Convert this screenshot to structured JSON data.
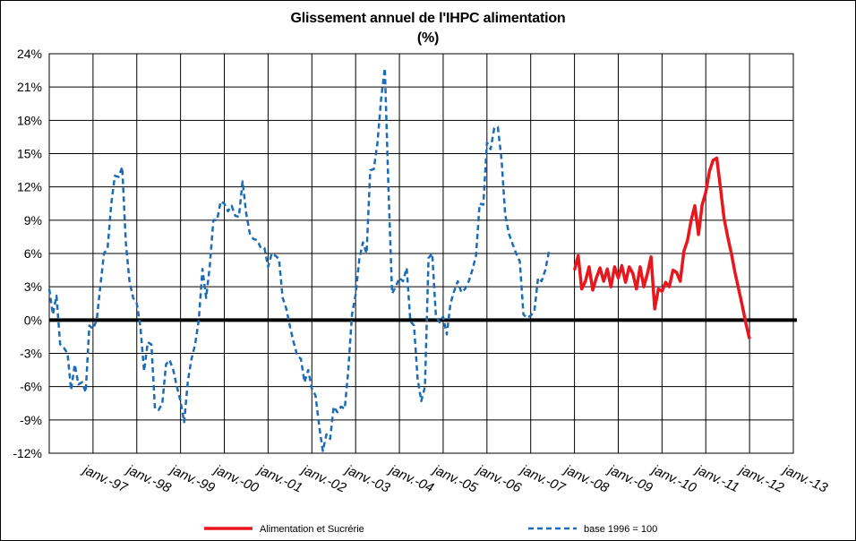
{
  "chart_data": {
    "type": "line",
    "title": "Glissement annuel de l'IHPC alimentation",
    "subtitle": "(%)",
    "xlabel": "",
    "ylabel": "",
    "ylim": [
      -12,
      24
    ],
    "y_ticks": [
      "24%",
      "21%",
      "18%",
      "15%",
      "12%",
      "9%",
      "6%",
      "3%",
      "0%",
      "-3%",
      "-6%",
      "-9%",
      "-12%"
    ],
    "x_ticks": [
      "janv.-97",
      "janv.-98",
      "janv.-99",
      "janv.-00",
      "janv.-01",
      "janv.-02",
      "janv.-03",
      "janv.-04",
      "janv.-05",
      "janv.-06",
      "janv.-07",
      "janv.-08",
      "janv.-09",
      "janv.-10",
      "janv.-11",
      "janv.-12",
      "janv.-13"
    ],
    "x_range": [
      "1996-01",
      "2013-01"
    ],
    "grid": true,
    "legend_position": "bottom",
    "series": [
      {
        "name": "Alimentation et Sucrérie",
        "color": "#e8161d",
        "style": "solid",
        "x_start": "2008-01",
        "values": [
          4.5,
          5.8,
          2.8,
          3.5,
          4.8,
          2.7,
          3.8,
          4.7,
          3.5,
          4.6,
          3.0,
          4.8,
          3.8,
          4.9,
          3.4,
          4.8,
          4.2,
          2.8,
          4.8,
          3.0,
          4.2,
          5.7,
          1.0,
          2.8,
          2.6,
          3.4,
          3.0,
          4.5,
          4.3,
          3.5,
          6.2,
          7.2,
          9.0,
          10.3,
          7.7,
          10.4,
          11.5,
          13.4,
          14.4,
          14.6,
          12.0,
          9.2,
          7.5,
          6.0,
          4.3,
          2.8,
          1.3,
          -0.3,
          -1.7
        ]
      },
      {
        "name": "base 1996 = 100",
        "color": "#1c6bb6",
        "style": "dashed",
        "x_start": "1996-01",
        "values": [
          2.8,
          0.5,
          2.2,
          -2.2,
          -2.5,
          -3.0,
          -6.3,
          -4.0,
          -5.8,
          -5.6,
          -6.5,
          -0.5,
          -0.8,
          0.0,
          3.0,
          6.0,
          6.5,
          10.5,
          13.0,
          12.9,
          13.8,
          7.0,
          3.5,
          2.0,
          1.5,
          -0.6,
          -4.6,
          -2.0,
          -2.2,
          -8.0,
          -8.1,
          -7.5,
          -4.0,
          -3.6,
          -4.5,
          -6.0,
          -7.3,
          -9.2,
          -5.5,
          -3.5,
          -2.2,
          0.0,
          4.6,
          2.0,
          4.8,
          9.0,
          9.0,
          10.7,
          10.5,
          9.8,
          10.3,
          9.4,
          9.3,
          12.5,
          9.6,
          7.8,
          7.3,
          7.2,
          6.5,
          6.5,
          4.8,
          6.0,
          5.8,
          5.5,
          2.0,
          1.0,
          -0.6,
          -2.0,
          -3.2,
          -3.5,
          -5.6,
          -4.5,
          -6.2,
          -6.8,
          -9.5,
          -11.8,
          -10.3,
          -10.7,
          -7.8,
          -8.3,
          -7.8,
          -8.0,
          -4.5,
          0.5,
          2.3,
          5.5,
          7.0,
          6.0,
          13.5,
          13.6,
          16.0,
          20.0,
          22.7,
          12.0,
          2.4,
          3.0,
          3.8,
          3.5,
          4.7,
          -0.1,
          -0.5,
          -5.3,
          -7.3,
          -6.0,
          5.6,
          6.0,
          0.4,
          -0.2,
          0.3,
          -1.3,
          1.5,
          2.6,
          3.5,
          2.5,
          2.8,
          3.5,
          4.5,
          5.8,
          10.5,
          10.4,
          16.0,
          15.4,
          17.3,
          17.4,
          14.5,
          9.5,
          7.8,
          6.9,
          6.0,
          5.3,
          0.5,
          0.2,
          0.4,
          0.8,
          3.8,
          3.5,
          4.5,
          6.2
        ]
      }
    ]
  }
}
